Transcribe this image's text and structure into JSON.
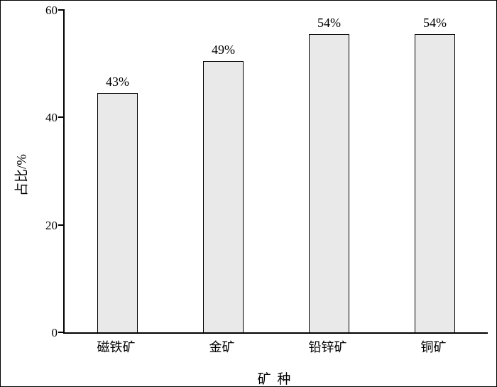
{
  "chart_data": {
    "type": "bar",
    "title": "",
    "categories": [
      "磁铁矿",
      "金矿",
      "铅锌矿",
      "铜矿"
    ],
    "values": [
      43,
      49,
      54,
      54
    ],
    "value_labels": [
      "43%",
      "49%",
      "54%",
      "54%"
    ],
    "bar_display_heights": [
      44.5,
      50.5,
      55.5,
      55.5
    ],
    "xlabel": "矿 种",
    "ylabel": "占比/%",
    "ylim": [
      0,
      60
    ],
    "yticks": [
      0,
      20,
      40,
      60
    ],
    "grid": "off",
    "legend": "none",
    "bar_fill_color": "#e9e9e9",
    "bar_border_color": "#000000",
    "axis_color": "#000000",
    "background_color": "#ffffff"
  }
}
